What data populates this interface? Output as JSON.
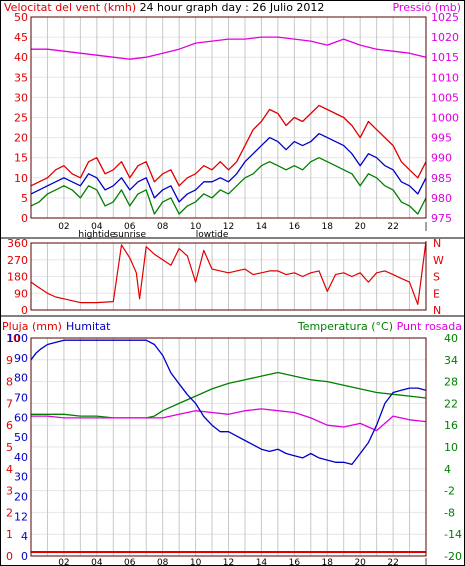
{
  "title": "24 hour graph day : 26 Julio 2012",
  "colors": {
    "wind": "#e00000",
    "gust_avg": "#0000c8",
    "wind_lo": "#008000",
    "pressure": "#e000e0",
    "direction": "#e00000",
    "rain": "#e00000",
    "humidity": "#0000c8",
    "temperature": "#008000",
    "dewpoint": "#e000e0",
    "grid": "#c8c8c8",
    "axis_dark": "#5a0000"
  },
  "chart_data": [
    {
      "type": "line",
      "name": "wind-pressure",
      "left_label": "Velocitat del vent (kmh)",
      "right_label": "Pressió (mb)",
      "ylim_left": [
        0,
        50
      ],
      "ylim_right": [
        975,
        1025
      ],
      "left_ticks": [
        "0",
        "5",
        "10",
        "15",
        "20",
        "25",
        "30",
        "35",
        "40",
        "45",
        "50"
      ],
      "right_ticks": [
        "975",
        "980",
        "985",
        "990",
        "995",
        "1000",
        "1005",
        "1010",
        "1015",
        "1020",
        "1025"
      ],
      "x_ticks": [
        "02",
        "04",
        "06",
        "08",
        "10",
        "12",
        "14",
        "16",
        "18",
        "20",
        "22"
      ],
      "x_sublabels": [
        {
          "hour": 4,
          "text": "hightide"
        },
        {
          "hour": 6,
          "text": "sunrise"
        },
        {
          "hour": 11,
          "text": "lowtide"
        }
      ],
      "x_range": [
        0,
        24
      ],
      "series": [
        {
          "key": "wind",
          "x": [
            0,
            0.5,
            1,
            1.5,
            2,
            2.5,
            3,
            3.5,
            4,
            4.5,
            5,
            5.5,
            6,
            6.5,
            7,
            7.5,
            8,
            8.5,
            9,
            9.5,
            10,
            10.5,
            11,
            11.5,
            12,
            12.5,
            13,
            13.5,
            14,
            14.5,
            15,
            15.5,
            16,
            16.5,
            17,
            17.5,
            18,
            18.5,
            19,
            19.5,
            20,
            20.5,
            21,
            21.5,
            22,
            22.5,
            23,
            23.5,
            24
          ],
          "values": [
            8,
            9,
            10,
            12,
            13,
            11,
            10,
            14,
            15,
            11,
            12,
            14,
            10,
            13,
            14,
            9,
            11,
            12,
            8,
            10,
            11,
            13,
            12,
            14,
            12,
            14,
            18,
            22,
            24,
            27,
            26,
            23,
            25,
            24,
            26,
            28,
            27,
            26,
            25,
            23,
            20,
            24,
            22,
            20,
            18,
            14,
            12,
            10,
            14
          ]
        },
        {
          "key": "gust_avg",
          "x": [
            0,
            0.5,
            1,
            1.5,
            2,
            2.5,
            3,
            3.5,
            4,
            4.5,
            5,
            5.5,
            6,
            6.5,
            7,
            7.5,
            8,
            8.5,
            9,
            9.5,
            10,
            10.5,
            11,
            11.5,
            12,
            12.5,
            13,
            13.5,
            14,
            14.5,
            15,
            15.5,
            16,
            16.5,
            17,
            17.5,
            18,
            18.5,
            19,
            19.5,
            20,
            20.5,
            21,
            21.5,
            22,
            22.5,
            23,
            23.5,
            24
          ],
          "values": [
            6,
            7,
            8,
            9,
            10,
            9,
            8,
            11,
            10,
            7,
            8,
            10,
            7,
            9,
            10,
            5,
            7,
            8,
            4,
            6,
            7,
            9,
            9,
            10,
            9,
            11,
            14,
            16,
            18,
            20,
            19,
            17,
            19,
            18,
            19,
            21,
            20,
            19,
            18,
            16,
            13,
            16,
            15,
            13,
            12,
            9,
            8,
            6,
            10
          ]
        },
        {
          "key": "wind_lo",
          "x": [
            0,
            0.5,
            1,
            1.5,
            2,
            2.5,
            3,
            3.5,
            4,
            4.5,
            5,
            5.5,
            6,
            6.5,
            7,
            7.5,
            8,
            8.5,
            9,
            9.5,
            10,
            10.5,
            11,
            11.5,
            12,
            12.5,
            13,
            13.5,
            14,
            14.5,
            15,
            15.5,
            16,
            16.5,
            17,
            17.5,
            18,
            18.5,
            19,
            19.5,
            20,
            20.5,
            21,
            21.5,
            22,
            22.5,
            23,
            23.5,
            24
          ],
          "values": [
            3,
            4,
            6,
            7,
            8,
            7,
            5,
            8,
            7,
            3,
            4,
            7,
            3,
            6,
            7,
            1,
            4,
            5,
            1,
            3,
            4,
            6,
            5,
            7,
            6,
            8,
            10,
            11,
            13,
            14,
            13,
            12,
            13,
            12,
            14,
            15,
            14,
            13,
            12,
            11,
            8,
            11,
            10,
            8,
            7,
            4,
            3,
            1,
            5
          ]
        },
        {
          "key": "pressure",
          "x": [
            0,
            1,
            2,
            3,
            4,
            5,
            6,
            7,
            8,
            9,
            10,
            11,
            12,
            13,
            14,
            15,
            16,
            17,
            18,
            19,
            20,
            21,
            22,
            23,
            24
          ],
          "values": [
            1017,
            1017,
            1016.5,
            1016,
            1015.5,
            1015,
            1014.5,
            1015,
            1016,
            1017,
            1018.5,
            1019,
            1019.5,
            1019.5,
            1020,
            1020,
            1019.5,
            1019,
            1018,
            1019.5,
            1018,
            1017,
            1016.5,
            1016,
            1015
          ]
        }
      ]
    },
    {
      "type": "line",
      "name": "wind-direction",
      "ylim": [
        0,
        360
      ],
      "left_ticks": [
        "0",
        "90",
        "180",
        "270",
        "360"
      ],
      "compass": [
        "N",
        "W",
        "S",
        "E",
        "N"
      ],
      "x_range": [
        0,
        24
      ],
      "series": [
        {
          "key": "direction",
          "x": [
            0,
            0.5,
            1,
            1.5,
            2,
            3,
            4,
            5,
            5.5,
            6,
            6.4,
            6.6,
            7,
            7.5,
            8,
            8.5,
            9,
            9.5,
            10,
            10.5,
            11,
            11.5,
            12,
            12.5,
            13,
            13.5,
            14,
            14.5,
            15,
            15.5,
            16,
            16.5,
            17,
            17.5,
            18,
            18.5,
            19,
            19.5,
            20,
            20.5,
            21,
            21.5,
            22,
            22.5,
            23,
            23.5,
            24
          ],
          "values": [
            150,
            120,
            90,
            70,
            60,
            40,
            40,
            45,
            350,
            280,
            200,
            60,
            340,
            300,
            270,
            240,
            330,
            290,
            150,
            320,
            220,
            210,
            200,
            210,
            220,
            190,
            200,
            210,
            210,
            190,
            200,
            180,
            200,
            210,
            100,
            190,
            200,
            180,
            200,
            150,
            200,
            210,
            190,
            170,
            150,
            30,
            370
          ]
        }
      ]
    },
    {
      "type": "line",
      "name": "rain-humidity-temperature",
      "left_label_1": "Pluja (mm)",
      "left_label_2": "Humitat",
      "right_label_1": "Temperatura (°C)",
      "right_label_2": "Punt rosada",
      "ylim_humidity": [
        0,
        100
      ],
      "ylim_temperature": [
        -20,
        40
      ],
      "rain_ticks": [
        "0",
        "1",
        "2",
        "3",
        "4",
        "5",
        "6",
        "7",
        "8",
        "9",
        "10"
      ],
      "humidity_ticks": [
        "0",
        "4",
        "12",
        "20",
        "30",
        "40",
        "50",
        "60",
        "70",
        "80",
        "90",
        "100"
      ],
      "temp_ticks": [
        "-20",
        "-14",
        "-8",
        "-2",
        "4",
        "10",
        "16",
        "22",
        "28",
        "34",
        "40"
      ],
      "x_ticks": [
        "02",
        "04",
        "06",
        "08",
        "10",
        "12",
        "14",
        "16",
        "18",
        "20",
        "22"
      ],
      "x_range": [
        0,
        24
      ],
      "series": [
        {
          "key": "humidity",
          "x": [
            0,
            0.3,
            0.6,
            1,
            2,
            3,
            4,
            5,
            6,
            7,
            7.5,
            8,
            8.5,
            9,
            9.5,
            10,
            10.5,
            11,
            11.5,
            12,
            12.5,
            13,
            13.5,
            14,
            14.5,
            15,
            15.5,
            16,
            16.5,
            17,
            17.5,
            18,
            18.5,
            19,
            19.5,
            20,
            20.5,
            21,
            21.5,
            22,
            22.5,
            23,
            23.5,
            24
          ],
          "values": [
            90,
            93,
            95,
            97,
            99,
            99,
            99,
            99,
            99,
            99,
            97,
            92,
            84,
            79,
            74,
            70,
            64,
            60,
            57,
            57,
            55,
            53,
            51,
            49,
            48,
            49,
            47,
            46,
            45,
            47,
            45,
            44,
            43,
            43,
            42,
            47,
            52,
            60,
            70,
            75,
            76,
            77,
            77,
            76
          ]
        },
        {
          "key": "temperature",
          "x": [
            0,
            1,
            2,
            3,
            4,
            5,
            6,
            7,
            7.5,
            8,
            9,
            10,
            11,
            12,
            13,
            14,
            15,
            16,
            17,
            18,
            19,
            20,
            21,
            22,
            23,
            24
          ],
          "values": [
            19,
            19,
            19,
            18.5,
            18.5,
            18,
            18,
            18,
            18.5,
            20,
            22,
            24,
            26,
            27.5,
            28.5,
            29.5,
            30.5,
            29.5,
            28.5,
            28,
            27,
            26,
            25,
            24.5,
            24,
            23.5
          ]
        },
        {
          "key": "dewpoint",
          "x": [
            0,
            1,
            2,
            3,
            4,
            5,
            6,
            7,
            8,
            9,
            10,
            11,
            12,
            13,
            14,
            15,
            16,
            17,
            18,
            19,
            20,
            21,
            22,
            23,
            24
          ],
          "values": [
            18.5,
            18.5,
            18,
            18,
            18,
            18,
            18,
            18,
            18,
            19,
            20,
            19.5,
            19,
            20,
            20.5,
            20,
            19.5,
            18,
            16,
            15.5,
            16.5,
            14.5,
            18.5,
            17.5,
            17
          ]
        },
        {
          "key": "rain",
          "x": [
            0,
            24
          ],
          "values": [
            0,
            0
          ]
        }
      ]
    }
  ]
}
